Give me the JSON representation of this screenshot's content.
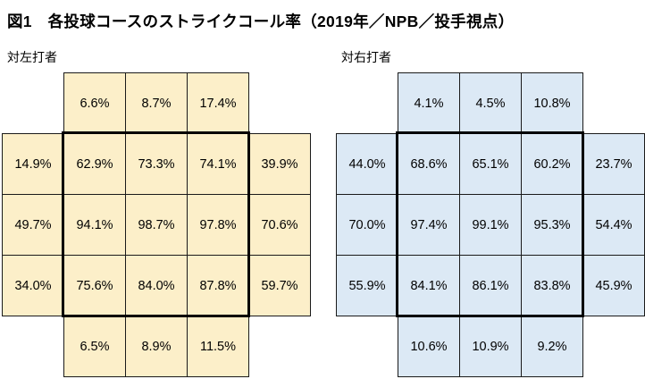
{
  "title": "図1　各投球コースのストライクコール率（2019年／NPB／投手視点）",
  "panels": [
    {
      "label": "対左打者",
      "cell_color": "#FCEFC9",
      "rows": [
        [
          "",
          "6.6%",
          "8.7%",
          "17.4%",
          ""
        ],
        [
          "14.9%",
          "62.9%",
          "73.3%",
          "74.1%",
          "39.9%"
        ],
        [
          "49.7%",
          "94.1%",
          "98.7%",
          "97.8%",
          "70.6%"
        ],
        [
          "34.0%",
          "75.6%",
          "84.0%",
          "87.8%",
          "59.7%"
        ],
        [
          "",
          "6.5%",
          "8.9%",
          "11.5%",
          ""
        ]
      ]
    },
    {
      "label": "対右打者",
      "cell_color": "#DCE9F5",
      "rows": [
        [
          "",
          "4.1%",
          "4.5%",
          "10.8%",
          ""
        ],
        [
          "44.0%",
          "68.6%",
          "65.1%",
          "60.2%",
          "23.7%"
        ],
        [
          "70.0%",
          "97.4%",
          "99.1%",
          "95.3%",
          "54.4%"
        ],
        [
          "55.9%",
          "84.1%",
          "86.1%",
          "83.8%",
          "45.9%"
        ],
        [
          "",
          "10.6%",
          "10.9%",
          "9.2%",
          ""
        ]
      ]
    }
  ],
  "chart_data": [
    {
      "type": "heatmap",
      "title": "図1　各投球コースのストライクコール率（2019年／NPB／投手視点）",
      "subtitle": "対左打者",
      "unit": "%",
      "grid_shape": "5x5 cross (four corners absent)",
      "strike_zone": "inner 3x3 block (rows 2-4, cols 2-4) outlined with thick border",
      "cell_color": "#FCEFC9",
      "rows": [
        [
          null,
          6.6,
          8.7,
          17.4,
          null
        ],
        [
          14.9,
          62.9,
          73.3,
          74.1,
          39.9
        ],
        [
          49.7,
          94.1,
          98.7,
          97.8,
          70.6
        ],
        [
          34.0,
          75.6,
          84.0,
          87.8,
          59.7
        ],
        [
          null,
          6.5,
          8.9,
          11.5,
          null
        ]
      ]
    },
    {
      "type": "heatmap",
      "title": "図1　各投球コースのストライクコール率（2019年／NPB／投手視点）",
      "subtitle": "対右打者",
      "unit": "%",
      "grid_shape": "5x5 cross (four corners absent)",
      "strike_zone": "inner 3x3 block (rows 2-4, cols 2-4) outlined with thick border",
      "cell_color": "#DCE9F5",
      "rows": [
        [
          null,
          4.1,
          4.5,
          10.8,
          null
        ],
        [
          44.0,
          68.6,
          65.1,
          60.2,
          23.7
        ],
        [
          70.0,
          97.4,
          99.1,
          95.3,
          54.4
        ],
        [
          55.9,
          84.1,
          86.1,
          83.8,
          45.9
        ],
        [
          null,
          10.6,
          10.9,
          9.2,
          null
        ]
      ]
    }
  ]
}
